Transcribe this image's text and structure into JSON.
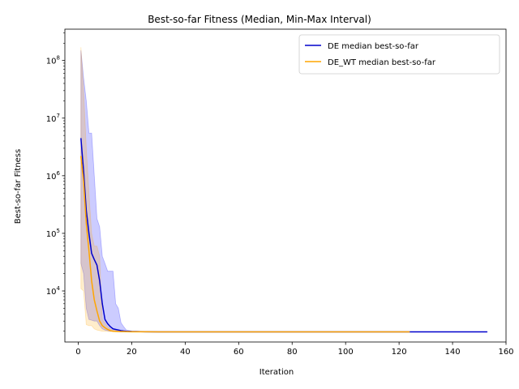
{
  "chart_data": {
    "type": "line",
    "title": "Best-so-far Fitness (Median, Min-Max Interval)",
    "xlabel": "Iteration",
    "ylabel": "Best-so-far Fitness",
    "xlim": [
      -5,
      160
    ],
    "ylim": [
      1300,
      350000000
    ],
    "yscale": "log",
    "grid": false,
    "legend_position": "top-right",
    "x_ticks": [
      {
        "value": 0,
        "label": "0"
      },
      {
        "value": 20,
        "label": "20"
      },
      {
        "value": 40,
        "label": "40"
      },
      {
        "value": 60,
        "label": "60"
      },
      {
        "value": 80,
        "label": "80"
      },
      {
        "value": 100,
        "label": "100"
      },
      {
        "value": 120,
        "label": "120"
      },
      {
        "value": 140,
        "label": "140"
      },
      {
        "value": 160,
        "label": "160"
      }
    ],
    "y_ticks": [
      {
        "value": 10000,
        "base": "10",
        "exp": "4"
      },
      {
        "value": 100000,
        "base": "10",
        "exp": "5"
      },
      {
        "value": 1000000,
        "base": "10",
        "exp": "6"
      },
      {
        "value": 10000000,
        "base": "10",
        "exp": "7"
      },
      {
        "value": 100000000,
        "base": "10",
        "exp": "8"
      }
    ],
    "series": [
      {
        "name": "DE median best-so-far",
        "color": "#0000cc",
        "band_color": "#0000ff",
        "x": [
          1,
          2,
          3,
          4,
          5,
          6,
          7,
          8,
          9,
          10,
          11,
          12,
          13,
          14,
          15,
          16,
          17,
          18,
          20,
          25,
          30,
          40,
          60,
          80,
          100,
          120,
          140,
          153
        ],
        "median": [
          4500000,
          1200000,
          250000,
          100000,
          45000,
          35000,
          28000,
          15000,
          6000,
          3200,
          2700,
          2400,
          2200,
          2150,
          2100,
          2050,
          2020,
          2000,
          1980,
          1960,
          1950,
          1950,
          1950,
          1950,
          1950,
          1950,
          1950,
          1950
        ],
        "max": [
          150000000,
          50000000,
          20000000,
          5500000,
          5500000,
          1000000,
          180000,
          130000,
          40000,
          30000,
          22000,
          22000,
          22000,
          6000,
          5000,
          2800,
          2400,
          2100,
          2000,
          1980,
          1960,
          1955,
          1955,
          1955,
          1955,
          1955,
          1955,
          1955
        ],
        "min": [
          30000,
          20000,
          5000,
          3200,
          3100,
          3000,
          3000,
          2500,
          2200,
          2100,
          2050,
          2000,
          2000,
          1980,
          1970,
          1960,
          1955,
          1950,
          1945,
          1940,
          1940,
          1940,
          1940,
          1940,
          1940,
          1940,
          1940,
          1940
        ]
      },
      {
        "name": "DE_WT median best-so-far",
        "color": "#ffa500",
        "band_color": "#ffa500",
        "x": [
          1,
          2,
          3,
          4,
          5,
          6,
          7,
          8,
          9,
          10,
          11,
          12,
          13,
          14,
          15,
          16,
          17,
          18,
          20,
          25,
          30,
          40,
          60,
          80,
          100,
          124
        ],
        "median": [
          2200000,
          800000,
          150000,
          50000,
          15000,
          7000,
          4500,
          3000,
          2500,
          2300,
          2150,
          2050,
          2000,
          1990,
          1980,
          1975,
          1970,
          1965,
          1960,
          1955,
          1950,
          1950,
          1950,
          1950,
          1950,
          1950
        ],
        "max": [
          170000000,
          30000000,
          3000000,
          500000,
          100000,
          60000,
          60000,
          40000,
          3200,
          2800,
          2400,
          2200,
          2100,
          2050,
          2000,
          1990,
          1985,
          1980,
          1975,
          1965,
          1960,
          1960,
          1960,
          1960,
          1960,
          1960
        ],
        "min": [
          11000,
          10000,
          2600,
          2500,
          2500,
          2200,
          2100,
          2050,
          2000,
          1990,
          1980,
          1970,
          1965,
          1960,
          1955,
          1950,
          1950,
          1945,
          1945,
          1940,
          1940,
          1940,
          1940,
          1940,
          1940,
          1940
        ]
      }
    ]
  }
}
